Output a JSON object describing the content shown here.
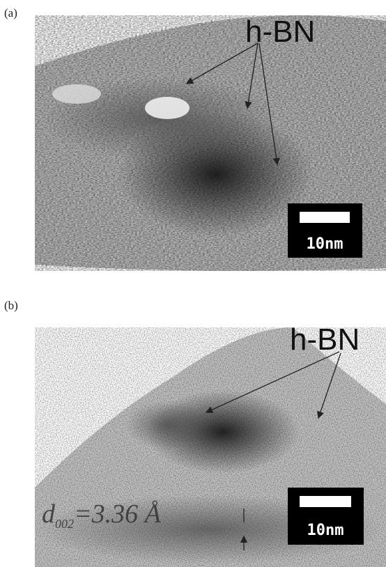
{
  "panels": [
    {
      "label": "(a)",
      "annotation": "h-BN",
      "scale_bar": "10nm"
    },
    {
      "label": "(b)",
      "annotation": "h-BN",
      "scale_bar": "10nm",
      "spacing": {
        "symbol": "d",
        "subscript": "002",
        "value": "=3.36 Å"
      }
    }
  ]
}
